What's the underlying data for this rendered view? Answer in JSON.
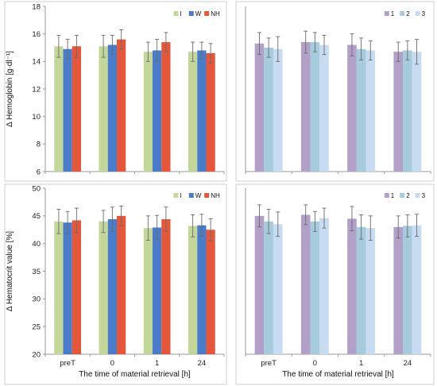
{
  "chart_data": [
    {
      "type": "bar",
      "panel": "top-left",
      "categories": [
        "preT",
        "0",
        "1",
        "24"
      ],
      "ylabel": "Δ  Hemoglobin  [g·dl⁻¹]",
      "xlabel": "",
      "ylim": [
        6,
        18
      ],
      "yticks": [
        6,
        8,
        10,
        12,
        14,
        16,
        18
      ],
      "legend": "top-right",
      "series": [
        {
          "name": "I",
          "color": "#c4d79b",
          "values": [
            15.1,
            15.1,
            14.7,
            14.7
          ],
          "errors": [
            0.8,
            0.8,
            0.7,
            0.7
          ]
        },
        {
          "name": "W",
          "color": "#4a7cc9",
          "values": [
            14.9,
            15.2,
            14.8,
            14.8
          ],
          "errors": [
            0.7,
            0.7,
            0.8,
            0.6
          ]
        },
        {
          "name": "NH",
          "color": "#e4573a",
          "values": [
            15.1,
            15.6,
            15.4,
            14.6
          ],
          "errors": [
            0.8,
            0.7,
            0.7,
            0.7
          ]
        }
      ]
    },
    {
      "type": "bar",
      "panel": "top-right",
      "categories": [
        "preT",
        "0",
        "1",
        "24"
      ],
      "ylabel": "",
      "xlabel": "",
      "ylim": [
        6,
        18
      ],
      "legend": "top-right",
      "series": [
        {
          "name": "1",
          "color": "#b2a0c8",
          "values": [
            15.3,
            15.4,
            15.2,
            14.7
          ],
          "errors": [
            0.8,
            0.8,
            0.8,
            0.7
          ]
        },
        {
          "name": "2",
          "color": "#a6cbdc",
          "values": [
            15.0,
            15.4,
            14.9,
            14.8
          ],
          "errors": [
            0.7,
            0.7,
            0.8,
            0.7
          ]
        },
        {
          "name": "3",
          "color": "#c7dcf1",
          "values": [
            14.9,
            15.2,
            14.8,
            14.7
          ],
          "errors": [
            0.9,
            0.7,
            0.7,
            0.9
          ]
        }
      ]
    },
    {
      "type": "bar",
      "panel": "bottom-left",
      "categories": [
        "preT",
        "0",
        "1",
        "24"
      ],
      "ylabel": "Δ Hematocrit value [%]",
      "xlabel": "The time of material retrieval [h]",
      "ylim": [
        20,
        50
      ],
      "yticks": [
        20,
        25,
        30,
        35,
        40,
        45,
        50
      ],
      "legend": "top-right",
      "series": [
        {
          "name": "I",
          "color": "#c4d79b",
          "values": [
            44.0,
            44.0,
            42.8,
            43.2
          ],
          "errors": [
            2.2,
            2.0,
            2.2,
            2.0
          ]
        },
        {
          "name": "W",
          "color": "#4a7cc9",
          "values": [
            43.8,
            44.4,
            42.9,
            43.3
          ],
          "errors": [
            2.0,
            2.2,
            2.2,
            2.0
          ]
        },
        {
          "name": "NH",
          "color": "#e4573a",
          "values": [
            44.2,
            45.0,
            44.4,
            42.5
          ],
          "errors": [
            2.2,
            1.8,
            2.2,
            2.0
          ]
        }
      ]
    },
    {
      "type": "bar",
      "panel": "bottom-right",
      "categories": [
        "preT",
        "0",
        "1",
        "24"
      ],
      "ylabel": "",
      "xlabel": "The time of material retrieval [h]",
      "ylim": [
        20,
        50
      ],
      "legend": "top-right",
      "series": [
        {
          "name": "1",
          "color": "#b2a0c8",
          "values": [
            45.0,
            45.2,
            44.5,
            43.0
          ],
          "errors": [
            2.0,
            1.8,
            2.2,
            2.0
          ]
        },
        {
          "name": "2",
          "color": "#a6cbdc",
          "values": [
            44.0,
            44.0,
            43.0,
            43.2
          ],
          "errors": [
            2.2,
            1.8,
            2.2,
            2.0
          ]
        },
        {
          "name": "3",
          "color": "#c7dcf1",
          "values": [
            43.5,
            44.6,
            42.8,
            43.3
          ],
          "errors": [
            2.2,
            1.8,
            2.2,
            2.0
          ]
        }
      ]
    }
  ]
}
